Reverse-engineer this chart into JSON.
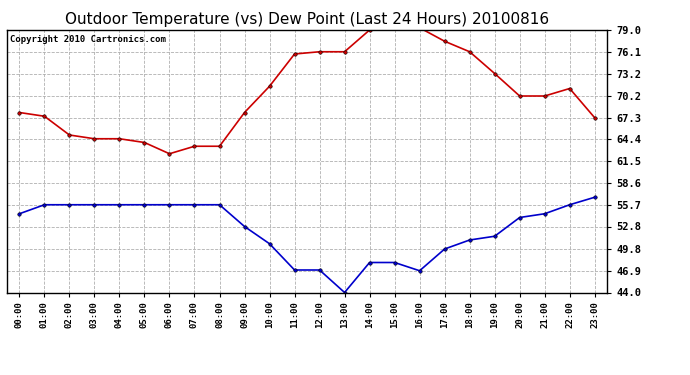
{
  "title": "Outdoor Temperature (vs) Dew Point (Last 24 Hours) 20100816",
  "copyright": "Copyright 2010 Cartronics.com",
  "hours": [
    "00:00",
    "01:00",
    "02:00",
    "03:00",
    "04:00",
    "05:00",
    "06:00",
    "07:00",
    "08:00",
    "09:00",
    "10:00",
    "11:00",
    "12:00",
    "13:00",
    "14:00",
    "15:00",
    "16:00",
    "17:00",
    "18:00",
    "19:00",
    "20:00",
    "21:00",
    "22:00",
    "23:00"
  ],
  "temp": [
    68.0,
    67.5,
    65.0,
    64.5,
    64.5,
    64.0,
    62.5,
    63.5,
    63.5,
    68.0,
    71.5,
    75.8,
    76.1,
    76.1,
    79.0,
    79.3,
    79.3,
    77.5,
    76.1,
    73.2,
    70.2,
    70.2,
    71.2,
    67.3
  ],
  "dewpoint": [
    54.5,
    55.7,
    55.7,
    55.7,
    55.7,
    55.7,
    55.7,
    55.7,
    55.7,
    52.8,
    50.5,
    47.0,
    47.0,
    44.0,
    48.0,
    48.0,
    46.9,
    49.8,
    51.0,
    51.5,
    54.0,
    54.5,
    55.7,
    56.7
  ],
  "temp_color": "#cc0000",
  "dew_color": "#0000cc",
  "bg_color": "#ffffff",
  "plot_bg_color": "#ffffff",
  "grid_color": "#b0b0b0",
  "ylim": [
    44.0,
    79.0
  ],
  "yticks": [
    44.0,
    46.9,
    49.8,
    52.8,
    55.7,
    58.6,
    61.5,
    64.4,
    67.3,
    70.2,
    73.2,
    76.1,
    79.0
  ],
  "title_fontsize": 11,
  "copyright_fontsize": 6.5,
  "marker": "o",
  "marker_size": 2.5,
  "linewidth": 1.2
}
